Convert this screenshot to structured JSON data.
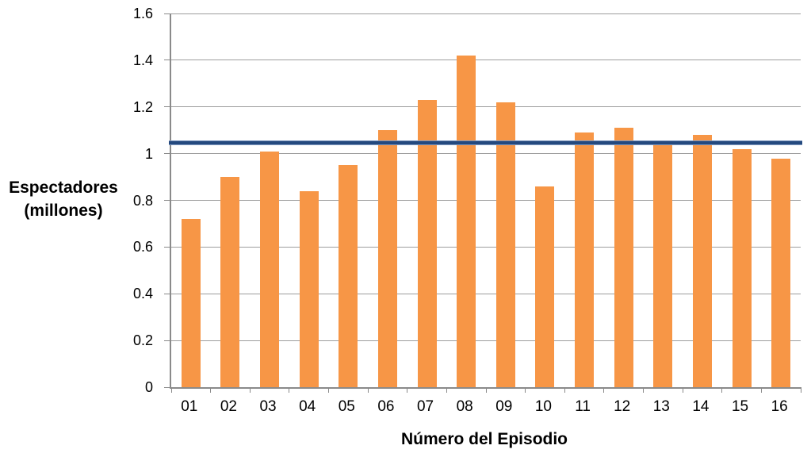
{
  "chart_data": {
    "type": "bar",
    "title": "",
    "categories": [
      "01",
      "02",
      "03",
      "04",
      "05",
      "06",
      "07",
      "08",
      "09",
      "10",
      "11",
      "12",
      "13",
      "14",
      "15",
      "16"
    ],
    "values": [
      0.72,
      0.9,
      1.01,
      0.84,
      0.95,
      1.1,
      1.23,
      1.42,
      1.22,
      0.86,
      1.09,
      1.11,
      1.04,
      1.08,
      1.02,
      0.98
    ],
    "reference_line": {
      "value": 1.045,
      "color": "#24497e",
      "edge_color": "#7e97be"
    },
    "xlabel": "Número del Episodio",
    "ylabel": "Espectadores (millones)",
    "ylabel_lines": [
      "Espectadores",
      "(millones)"
    ],
    "ylim": [
      0,
      1.6
    ],
    "ytick_step": 0.2,
    "ytick_labels": [
      "0",
      "0.2",
      "0.4",
      "0.6",
      "0.8",
      "1",
      "1.2",
      "1.4",
      "1.6"
    ],
    "grid": "horizontal",
    "legend": "none",
    "colors": {
      "bar": "#f79646",
      "gridline": "#9d9d9d",
      "axis": "#8a8a8a",
      "text": "#000000",
      "background": "#ffffff"
    }
  }
}
